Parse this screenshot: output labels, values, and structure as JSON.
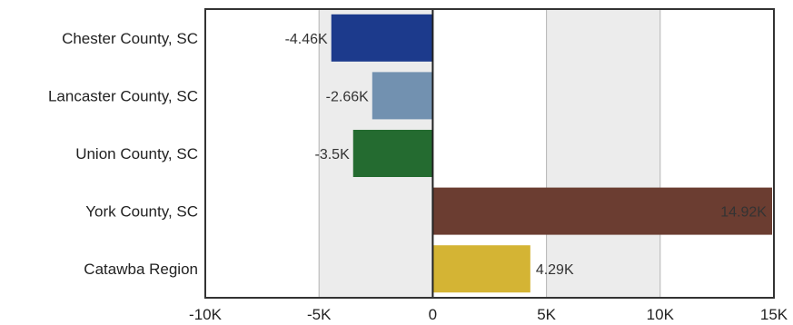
{
  "chart_data": {
    "type": "bar",
    "orientation": "horizontal",
    "title": "",
    "xlabel": "",
    "ylabel": "",
    "categories": [
      "Chester County, SC",
      "Lancaster County, SC",
      "Union County, SC",
      "York County, SC",
      "Catawba Region"
    ],
    "values": [
      -4460,
      -2660,
      -3500,
      14920,
      4290
    ],
    "data_labels": [
      "-4.46K",
      "-2.66K",
      "-3.5K",
      "14.92K",
      "4.29K"
    ],
    "colors": [
      "#1c3a8c",
      "#7291b0",
      "#246b30",
      "#6b3d31",
      "#d4b434"
    ],
    "xlim": [
      -10000,
      15000
    ],
    "xticks": [
      -10000,
      -5000,
      0,
      5000,
      10000,
      15000
    ],
    "xtick_labels": [
      "-10K",
      "-5K",
      "0",
      "5K",
      "10K",
      "15K"
    ],
    "grid": true,
    "legend": "none",
    "band_colors": [
      "#ffffff",
      "#ececec"
    ]
  }
}
